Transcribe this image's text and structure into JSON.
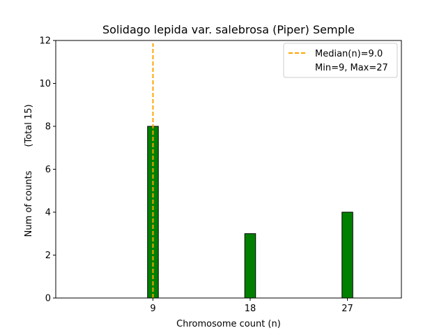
{
  "chart_data": {
    "type": "bar",
    "title": "Solidago lepida var. salebrosa (Piper) Semple",
    "xlabel": "Chromosome count (n)",
    "ylabel": "Num of counts",
    "ylabel_total": "(Total 15)",
    "x_ticks": [
      9,
      18,
      27
    ],
    "y_ticks": [
      0,
      2,
      4,
      6,
      8,
      10,
      12
    ],
    "xlim": [
      0,
      32
    ],
    "ylim": [
      0,
      12
    ],
    "bars": [
      {
        "x": 9,
        "value": 8
      },
      {
        "x": 18,
        "value": 3
      },
      {
        "x": 27,
        "value": 4
      }
    ],
    "bar_width": 1,
    "bar_color": "#008000",
    "median": 9.0,
    "median_color": "#FFA500",
    "legend": {
      "position": "top-right",
      "entries": [
        "Median(n)=9.0",
        "Min=9, Max=27"
      ]
    },
    "grid": false
  }
}
